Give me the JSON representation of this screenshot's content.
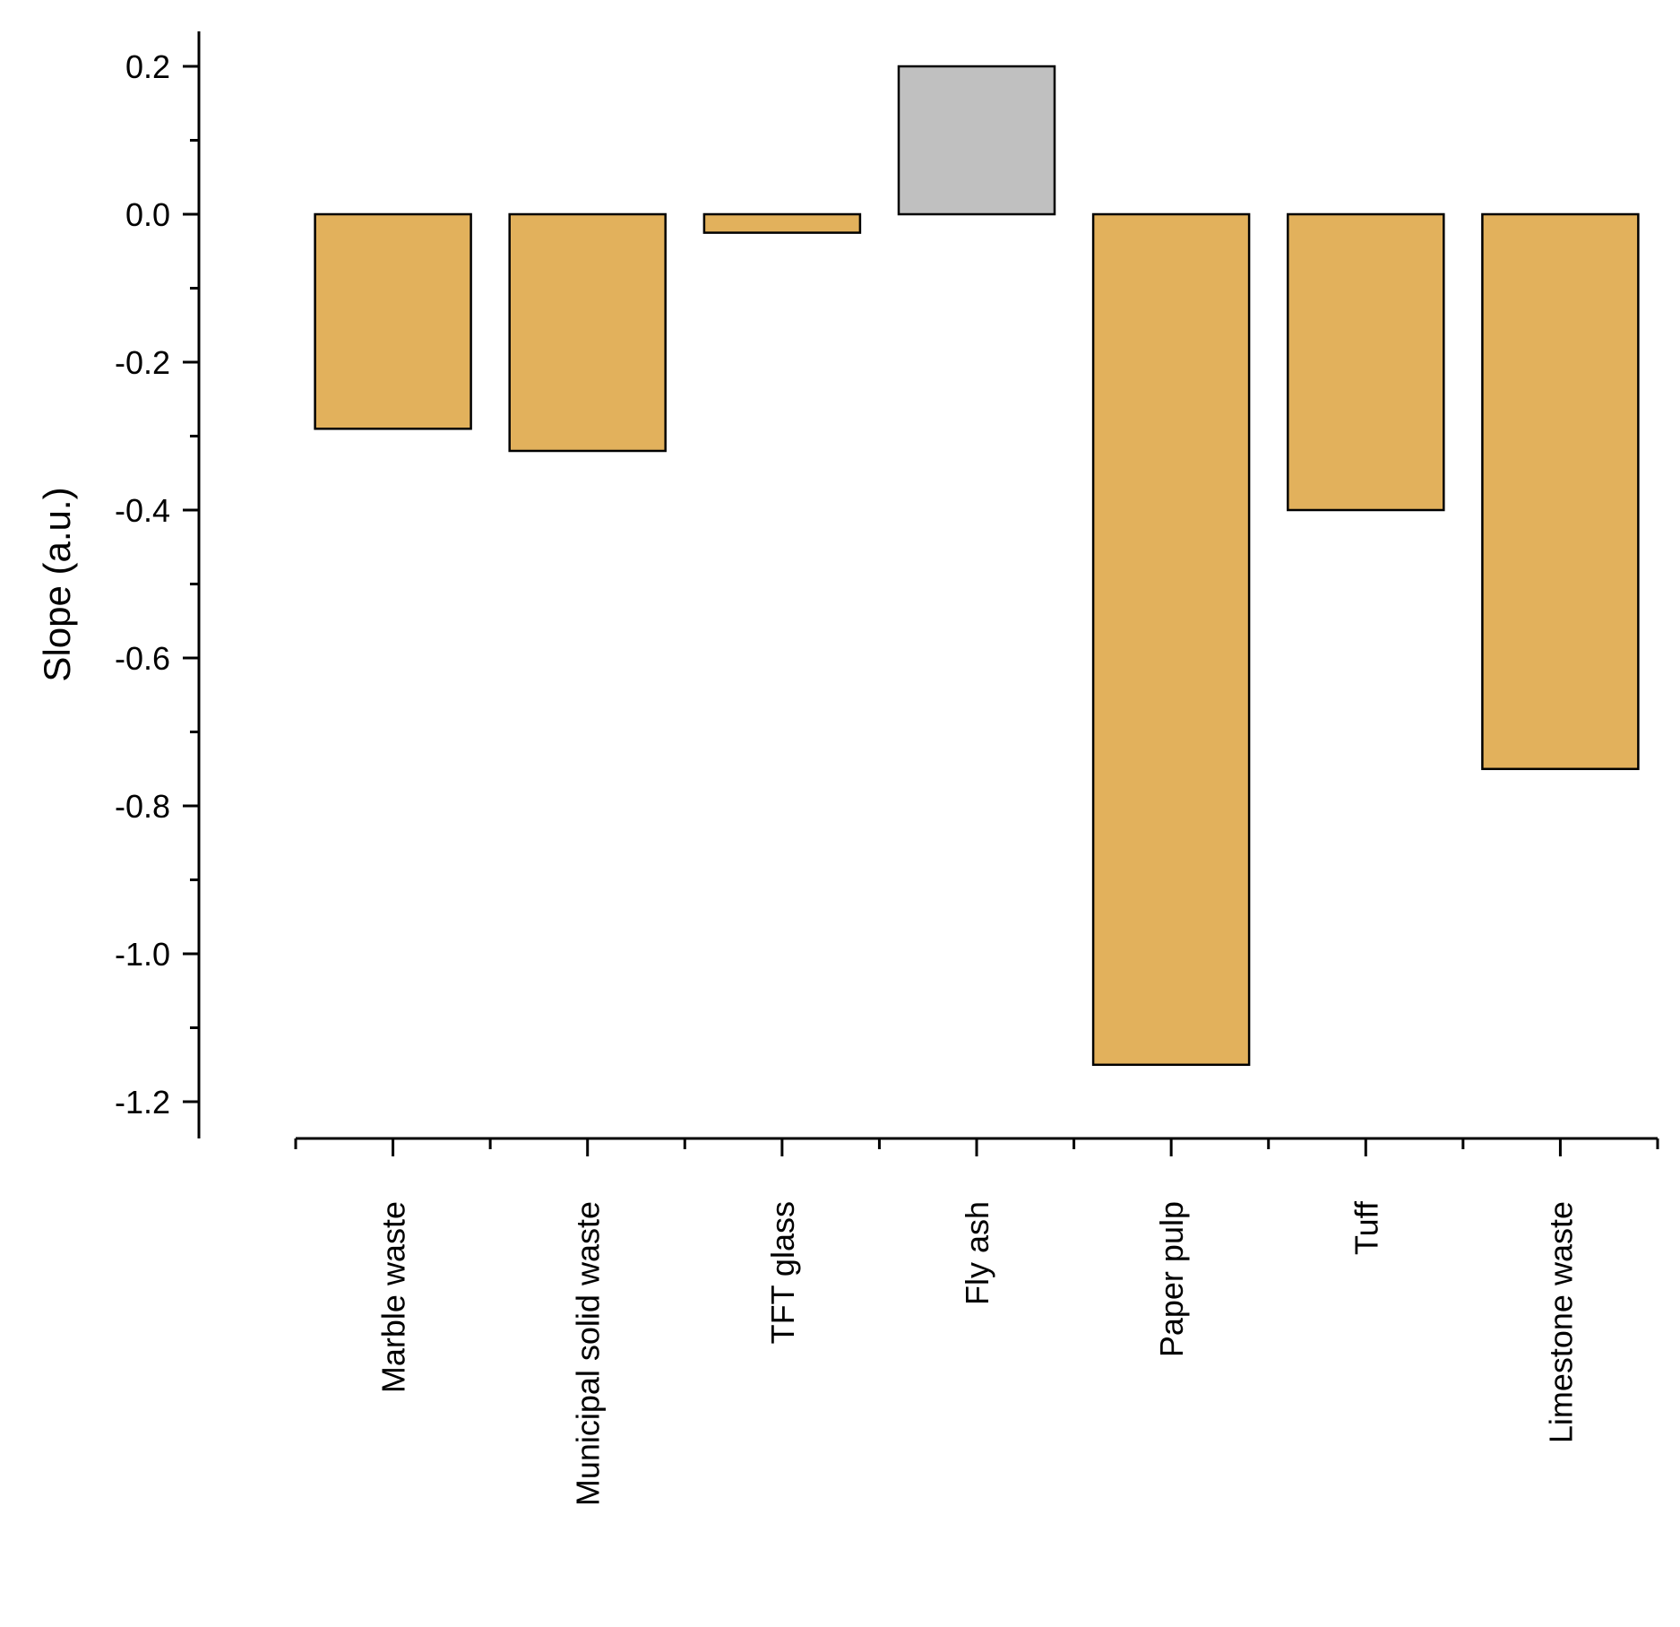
{
  "chart_data": {
    "type": "bar",
    "title": "",
    "xlabel": "",
    "ylabel": "Slope (a.u.)",
    "categories": [
      "Marble waste",
      "Municipal solid waste",
      "TFT glass",
      "Fly ash",
      "Paper pulp",
      "Tuff",
      "Limestone waste"
    ],
    "values": [
      -0.29,
      -0.32,
      -0.025,
      0.2,
      -1.15,
      -0.4,
      -0.75
    ],
    "bar_colors": [
      "#E2B15C",
      "#E2B15C",
      "#E2B15C",
      "#C0C0C0",
      "#E2B15C",
      "#E2B15C",
      "#E2B15C"
    ],
    "ylim": [
      -1.25,
      0.25
    ],
    "yticks": [
      0.2,
      0.0,
      -0.2,
      -0.4,
      -0.6,
      -0.8,
      -1.0,
      -1.2
    ],
    "ytick_labels": [
      "0.2",
      "0.0",
      "-0.2",
      "-0.4",
      "-0.6",
      "-0.8",
      "-1.0",
      "-1.2"
    ],
    "grid": false,
    "legend": "none"
  }
}
